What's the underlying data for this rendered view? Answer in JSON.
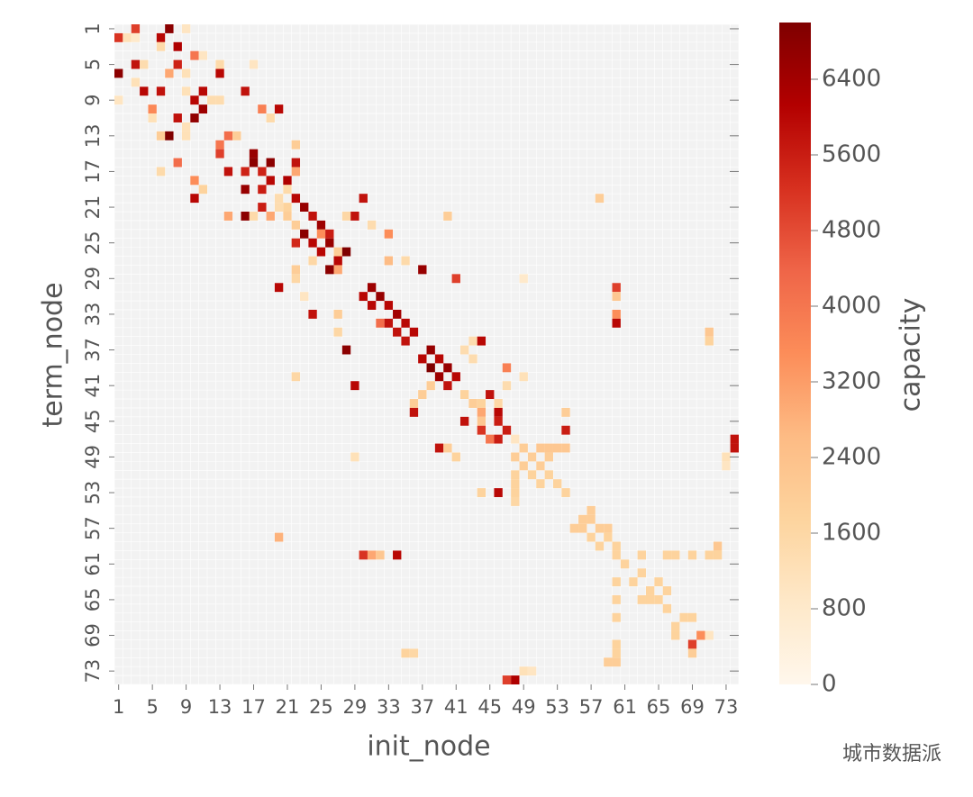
{
  "chart_data": {
    "type": "heatmap",
    "x_label": "init_node",
    "y_label": "term_node",
    "colorbar_label": "capacity",
    "watermark": "城市数据派",
    "xlim": [
      0.5,
      74.5
    ],
    "ylim": [
      74.5,
      0.5
    ],
    "xticks": [
      1,
      5,
      9,
      13,
      17,
      21,
      25,
      29,
      33,
      37,
      41,
      45,
      49,
      53,
      57,
      61,
      65,
      69,
      73
    ],
    "yticks": [
      1,
      5,
      9,
      13,
      17,
      21,
      25,
      29,
      33,
      37,
      41,
      45,
      49,
      53,
      57,
      61,
      65,
      69,
      73
    ],
    "clim": [
      0,
      7000
    ],
    "cticks": [
      0,
      800,
      1600,
      2400,
      3200,
      4000,
      4800,
      5600,
      6400
    ],
    "colormap": [
      "#fff7ec",
      "#fee8c8",
      "#fdd49e",
      "#fdbb84",
      "#fc8d59",
      "#ef6548",
      "#d7301f",
      "#b30000",
      "#7f0000"
    ],
    "background": "#f2f2f2",
    "cells": [
      [
        3,
        1,
        5000
      ],
      [
        7,
        1,
        6800
      ],
      [
        9,
        1,
        1000
      ],
      [
        1,
        2,
        5200
      ],
      [
        2,
        2,
        1200
      ],
      [
        3,
        2,
        800
      ],
      [
        6,
        2,
        6000
      ],
      [
        6,
        3,
        1500
      ],
      [
        8,
        3,
        6200
      ],
      [
        10,
        4,
        4000
      ],
      [
        11,
        4,
        1000
      ],
      [
        3,
        5,
        5800
      ],
      [
        4,
        5,
        1400
      ],
      [
        8,
        5,
        5500
      ],
      [
        13,
        5,
        1500
      ],
      [
        17,
        5,
        1000
      ],
      [
        1,
        6,
        6800
      ],
      [
        7,
        6,
        3000
      ],
      [
        9,
        6,
        1200
      ],
      [
        13,
        6,
        6000
      ],
      [
        3,
        7,
        1200
      ],
      [
        4,
        8,
        6000
      ],
      [
        6,
        8,
        5800
      ],
      [
        9,
        8,
        1200
      ],
      [
        11,
        8,
        6000
      ],
      [
        16,
        8,
        5800
      ],
      [
        1,
        9,
        1000
      ],
      [
        12,
        9,
        1400
      ],
      [
        13,
        9,
        1400
      ],
      [
        10,
        9,
        6000
      ],
      [
        5,
        10,
        3600
      ],
      [
        11,
        10,
        6500
      ],
      [
        18,
        10,
        3800
      ],
      [
        20,
        10,
        6000
      ],
      [
        5,
        11,
        1200
      ],
      [
        8,
        11,
        5800
      ],
      [
        10,
        11,
        6700
      ],
      [
        19,
        11,
        1500
      ],
      [
        9,
        12,
        1200
      ],
      [
        6,
        13,
        2000
      ],
      [
        7,
        13,
        7000
      ],
      [
        9,
        13,
        1200
      ],
      [
        14,
        13,
        4200
      ],
      [
        15,
        13,
        2000
      ],
      [
        13,
        14,
        4000
      ],
      [
        22,
        14,
        2000
      ],
      [
        13,
        15,
        5000
      ],
      [
        17,
        15,
        6600
      ],
      [
        8,
        16,
        4200
      ],
      [
        17,
        16,
        6800
      ],
      [
        19,
        16,
        6800
      ],
      [
        22,
        16,
        5800
      ],
      [
        6,
        17,
        1500
      ],
      [
        14,
        17,
        5800
      ],
      [
        16,
        17,
        5500
      ],
      [
        18,
        17,
        5500
      ],
      [
        22,
        17,
        3000
      ],
      [
        10,
        18,
        3500
      ],
      [
        19,
        18,
        6000
      ],
      [
        21,
        18,
        6200
      ],
      [
        11,
        19,
        1800
      ],
      [
        16,
        19,
        6600
      ],
      [
        18,
        19,
        5600
      ],
      [
        21,
        19,
        1500
      ],
      [
        10,
        20,
        6000
      ],
      [
        20,
        20,
        1400
      ],
      [
        22,
        20,
        6000
      ],
      [
        30,
        20,
        5800
      ],
      [
        58,
        20,
        2000
      ],
      [
        18,
        21,
        5600
      ],
      [
        20,
        21,
        1400
      ],
      [
        21,
        21,
        1800
      ],
      [
        23,
        21,
        6600
      ],
      [
        14,
        22,
        3000
      ],
      [
        16,
        22,
        6800
      ],
      [
        17,
        22,
        1500
      ],
      [
        19,
        22,
        3000
      ],
      [
        21,
        22,
        2000
      ],
      [
        24,
        22,
        5800
      ],
      [
        28,
        22,
        1600
      ],
      [
        29,
        22,
        5800
      ],
      [
        40,
        22,
        2000
      ],
      [
        22,
        23,
        2000
      ],
      [
        25,
        23,
        6500
      ],
      [
        31,
        23,
        1400
      ],
      [
        23,
        24,
        6800
      ],
      [
        25,
        24,
        3500
      ],
      [
        26,
        24,
        5600
      ],
      [
        33,
        24,
        3500
      ],
      [
        22,
        25,
        5400
      ],
      [
        24,
        25,
        6000
      ],
      [
        26,
        25,
        6600
      ],
      [
        25,
        26,
        6000
      ],
      [
        27,
        26,
        2000
      ],
      [
        28,
        26,
        7000
      ],
      [
        24,
        27,
        1600
      ],
      [
        27,
        27,
        6000
      ],
      [
        33,
        27,
        2600
      ],
      [
        35,
        27,
        1500
      ],
      [
        22,
        28,
        2000
      ],
      [
        26,
        28,
        6800
      ],
      [
        27,
        28,
        3000
      ],
      [
        37,
        28,
        6600
      ],
      [
        22,
        29,
        1600
      ],
      [
        41,
        29,
        5000
      ],
      [
        49,
        29,
        800
      ],
      [
        20,
        30,
        6000
      ],
      [
        31,
        30,
        6500
      ],
      [
        60,
        30,
        5000
      ],
      [
        23,
        31,
        1000
      ],
      [
        30,
        31,
        6000
      ],
      [
        32,
        31,
        6600
      ],
      [
        60,
        31,
        2200
      ],
      [
        31,
        32,
        6000
      ],
      [
        33,
        32,
        6000
      ],
      [
        24,
        33,
        5800
      ],
      [
        27,
        33,
        2000
      ],
      [
        34,
        33,
        6400
      ],
      [
        60,
        33,
        3500
      ],
      [
        32,
        34,
        4200
      ],
      [
        33,
        34,
        5800
      ],
      [
        35,
        34,
        6000
      ],
      [
        60,
        34,
        6000
      ],
      [
        27,
        35,
        1600
      ],
      [
        34,
        35,
        5800
      ],
      [
        36,
        35,
        6000
      ],
      [
        71,
        35,
        2200
      ],
      [
        35,
        36,
        5800
      ],
      [
        43,
        36,
        1400
      ],
      [
        44,
        36,
        6000
      ],
      [
        71,
        36,
        1800
      ],
      [
        28,
        37,
        6800
      ],
      [
        38,
        37,
        6600
      ],
      [
        42,
        37,
        1400
      ],
      [
        37,
        38,
        6000
      ],
      [
        39,
        38,
        6000
      ],
      [
        43,
        38,
        1400
      ],
      [
        38,
        39,
        7000
      ],
      [
        40,
        39,
        6600
      ],
      [
        47,
        39,
        3800
      ],
      [
        22,
        40,
        1600
      ],
      [
        39,
        40,
        6500
      ],
      [
        41,
        40,
        6000
      ],
      [
        49,
        40,
        1200
      ],
      [
        29,
        41,
        6000
      ],
      [
        38,
        41,
        2000
      ],
      [
        40,
        41,
        5800
      ],
      [
        47,
        41,
        1400
      ],
      [
        37,
        42,
        2000
      ],
      [
        42,
        42,
        1800
      ],
      [
        45,
        42,
        5800
      ],
      [
        36,
        43,
        2000
      ],
      [
        43,
        43,
        2000
      ],
      [
        44,
        43,
        1800
      ],
      [
        46,
        43,
        1600
      ],
      [
        36,
        44,
        5800
      ],
      [
        44,
        44,
        3000
      ],
      [
        46,
        44,
        6000
      ],
      [
        54,
        44,
        2000
      ],
      [
        42,
        45,
        5800
      ],
      [
        44,
        45,
        2200
      ],
      [
        46,
        45,
        5600
      ],
      [
        44,
        46,
        5200
      ],
      [
        47,
        46,
        5600
      ],
      [
        54,
        46,
        5600
      ],
      [
        45,
        47,
        4000
      ],
      [
        46,
        47,
        5600
      ],
      [
        48,
        47,
        1000
      ],
      [
        74,
        47,
        5800
      ],
      [
        39,
        48,
        5800
      ],
      [
        40,
        48,
        2000
      ],
      [
        49,
        48,
        2000
      ],
      [
        51,
        48,
        2200
      ],
      [
        52,
        48,
        2200
      ],
      [
        53,
        48,
        2200
      ],
      [
        54,
        48,
        2200
      ],
      [
        74,
        48,
        5800
      ],
      [
        29,
        49,
        1200
      ],
      [
        41,
        49,
        1800
      ],
      [
        48,
        49,
        2000
      ],
      [
        50,
        49,
        2000
      ],
      [
        52,
        49,
        2000
      ],
      [
        73,
        49,
        1200
      ],
      [
        49,
        50,
        2000
      ],
      [
        51,
        50,
        2000
      ],
      [
        73,
        50,
        1000
      ],
      [
        48,
        51,
        1800
      ],
      [
        50,
        51,
        1800
      ],
      [
        52,
        51,
        1800
      ],
      [
        48,
        52,
        1800
      ],
      [
        51,
        52,
        1800
      ],
      [
        53,
        52,
        1800
      ],
      [
        44,
        53,
        1800
      ],
      [
        46,
        53,
        6000
      ],
      [
        48,
        53,
        1800
      ],
      [
        54,
        53,
        1800
      ],
      [
        48,
        54,
        1600
      ],
      [
        57,
        55,
        2000
      ],
      [
        56,
        56,
        2000
      ],
      [
        57,
        56,
        2000
      ],
      [
        55,
        57,
        2000
      ],
      [
        56,
        57,
        2000
      ],
      [
        58,
        57,
        2000
      ],
      [
        59,
        57,
        2000
      ],
      [
        20,
        58,
        2800
      ],
      [
        57,
        58,
        1800
      ],
      [
        59,
        58,
        1800
      ],
      [
        58,
        59,
        1800
      ],
      [
        60,
        59,
        1800
      ],
      [
        72,
        59,
        2200
      ],
      [
        30,
        60,
        5200
      ],
      [
        31,
        60,
        3000
      ],
      [
        32,
        60,
        2200
      ],
      [
        34,
        60,
        6000
      ],
      [
        60,
        60,
        1800
      ],
      [
        63,
        60,
        1800
      ],
      [
        66,
        60,
        1800
      ],
      [
        67,
        60,
        1800
      ],
      [
        69,
        60,
        1800
      ],
      [
        71,
        60,
        1800
      ],
      [
        72,
        60,
        1800
      ],
      [
        61,
        61,
        1800
      ],
      [
        63,
        62,
        1800
      ],
      [
        60,
        63,
        1800
      ],
      [
        62,
        63,
        1800
      ],
      [
        65,
        63,
        1800
      ],
      [
        64,
        64,
        1800
      ],
      [
        66,
        64,
        1800
      ],
      [
        60,
        65,
        1800
      ],
      [
        63,
        65,
        1800
      ],
      [
        64,
        65,
        1800
      ],
      [
        65,
        65,
        1800
      ],
      [
        66,
        66,
        1800
      ],
      [
        60,
        67,
        1800
      ],
      [
        68,
        67,
        1800
      ],
      [
        69,
        67,
        1800
      ],
      [
        67,
        68,
        1800
      ],
      [
        67,
        69,
        1800
      ],
      [
        70,
        69,
        3500
      ],
      [
        71,
        69,
        1000
      ],
      [
        60,
        70,
        1800
      ],
      [
        69,
        70,
        5000
      ],
      [
        35,
        71,
        1800
      ],
      [
        36,
        71,
        1600
      ],
      [
        60,
        71,
        1800
      ],
      [
        69,
        71,
        2000
      ],
      [
        59,
        72,
        2000
      ],
      [
        60,
        72,
        2000
      ],
      [
        49,
        73,
        1200
      ],
      [
        50,
        73,
        1000
      ],
      [
        47,
        74,
        5000
      ],
      [
        48,
        74,
        6200
      ]
    ]
  }
}
